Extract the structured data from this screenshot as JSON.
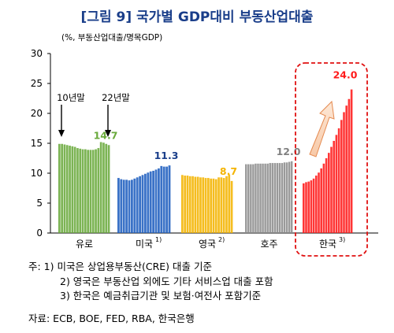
{
  "title": "[그림 9] 국가별 GDP대비 부동산업대출",
  "chart_data": {
    "type": "bar",
    "unit_label": "(%, 부동산업대출/명목GDP)",
    "ylim": [
      0,
      30
    ],
    "yticks": [
      "0",
      "5",
      "10",
      "15",
      "20",
      "25",
      "30"
    ],
    "grid": false,
    "colors": {
      "유로": "#6aaa3c",
      "미국": "#1f5fbf",
      "영국": "#f4b400",
      "호주": "#8c8c8c",
      "한국": "#ff1a1a"
    },
    "series": [
      {
        "name": "유로",
        "label": "유로",
        "end_label": "14.7",
        "start_label": "10년말",
        "end_tag": "22년말",
        "values": [
          14.9,
          14.9,
          14.8,
          14.7,
          14.6,
          14.5,
          14.4,
          14.2,
          14.1,
          14.0,
          14.0,
          13.9,
          13.9,
          13.9,
          14.0,
          14.2,
          15.2,
          15.1,
          14.9,
          14.7
        ]
      },
      {
        "name": "미국",
        "label": "미국",
        "note": "1)",
        "end_label": "11.3",
        "values": [
          9.2,
          9.0,
          8.9,
          8.9,
          8.8,
          8.9,
          9.1,
          9.3,
          9.5,
          9.7,
          9.9,
          10.1,
          10.3,
          10.4,
          10.6,
          10.8,
          11.2,
          11.1,
          11.1,
          11.3
        ]
      },
      {
        "name": "영국",
        "label": "영국",
        "note": "2)",
        "end_label": "8.7",
        "values": [
          9.7,
          9.6,
          9.6,
          9.5,
          9.5,
          9.4,
          9.4,
          9.3,
          9.3,
          9.2,
          9.2,
          9.1,
          9.1,
          9.0,
          9.3,
          9.3,
          9.2,
          9.5,
          9.8,
          8.7
        ]
      },
      {
        "name": "호주",
        "label": "호주",
        "end_label": "12.0",
        "values": [
          11.5,
          11.5,
          11.5,
          11.5,
          11.6,
          11.6,
          11.6,
          11.6,
          11.6,
          11.6,
          11.7,
          11.7,
          11.7,
          11.7,
          11.7,
          11.7,
          11.8,
          11.8,
          11.9,
          12.0
        ]
      },
      {
        "name": "한국",
        "label": "한국",
        "note": "3)",
        "end_label": "24.0",
        "values": [
          8.3,
          8.5,
          8.6,
          8.8,
          9.1,
          9.6,
          10.1,
          10.8,
          11.6,
          12.5,
          13.4,
          14.4,
          15.4,
          16.4,
          17.5,
          18.9,
          20.2,
          21.3,
          22.4,
          24.0
        ]
      }
    ]
  },
  "notes": [
    "주: 1) 미국은 상업용부동산(CRE) 대출 기준",
    "2) 영국은 부동산업 외에도 기타 서비스업 대출 포함",
    "3) 한국은 예금취급기관 및 보험·여전사 포함기준"
  ],
  "source": "자료: ECB, BOE, FED, RBA, 한국은행"
}
